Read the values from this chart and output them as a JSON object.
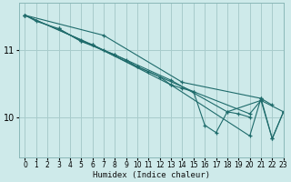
{
  "xlabel": "Humidex (Indice chaleur)",
  "background_color": "#ceeaea",
  "grid_color": "#a8cccc",
  "line_color": "#1e6b6b",
  "xlim": [
    -0.5,
    23
  ],
  "ylim": [
    9.4,
    11.7
  ],
  "yticks": [
    10,
    11
  ],
  "xticks": [
    0,
    1,
    2,
    3,
    4,
    5,
    6,
    7,
    8,
    9,
    10,
    11,
    12,
    13,
    14,
    15,
    16,
    17,
    18,
    19,
    20,
    21,
    22,
    23
  ],
  "lines": [
    [
      [
        0,
        11.52
      ],
      [
        1,
        11.43
      ],
      [
        3,
        11.32
      ],
      [
        5,
        11.13
      ],
      [
        6,
        11.08
      ],
      [
        7,
        11.0
      ],
      [
        8,
        10.93
      ],
      [
        9,
        10.85
      ],
      [
        10,
        10.75
      ],
      [
        11,
        10.68
      ],
      [
        12,
        10.6
      ],
      [
        13,
        10.48
      ],
      [
        14,
        10.43
      ],
      [
        15,
        10.38
      ],
      [
        16,
        9.88
      ],
      [
        17,
        9.77
      ],
      [
        18,
        10.08
      ],
      [
        19,
        10.05
      ],
      [
        20,
        10.0
      ]
    ],
    [
      [
        0,
        11.52
      ],
      [
        7,
        11.22
      ],
      [
        14,
        10.52
      ],
      [
        21,
        10.28
      ],
      [
        22,
        10.18
      ]
    ],
    [
      [
        0,
        11.52
      ],
      [
        6,
        11.08
      ],
      [
        13,
        10.48
      ],
      [
        20,
        9.72
      ],
      [
        21,
        10.28
      ],
      [
        22,
        9.68
      ],
      [
        23,
        10.08
      ]
    ],
    [
      [
        0,
        11.52
      ],
      [
        5,
        11.15
      ],
      [
        10,
        10.75
      ],
      [
        15,
        10.38
      ],
      [
        20,
        10.05
      ],
      [
        21,
        10.25
      ],
      [
        23,
        10.08
      ]
    ],
    [
      [
        3,
        11.32
      ],
      [
        5,
        11.13
      ],
      [
        8,
        10.93
      ],
      [
        13,
        10.55
      ],
      [
        18,
        10.08
      ],
      [
        21,
        10.25
      ],
      [
        22,
        9.68
      ],
      [
        23,
        10.08
      ]
    ]
  ]
}
